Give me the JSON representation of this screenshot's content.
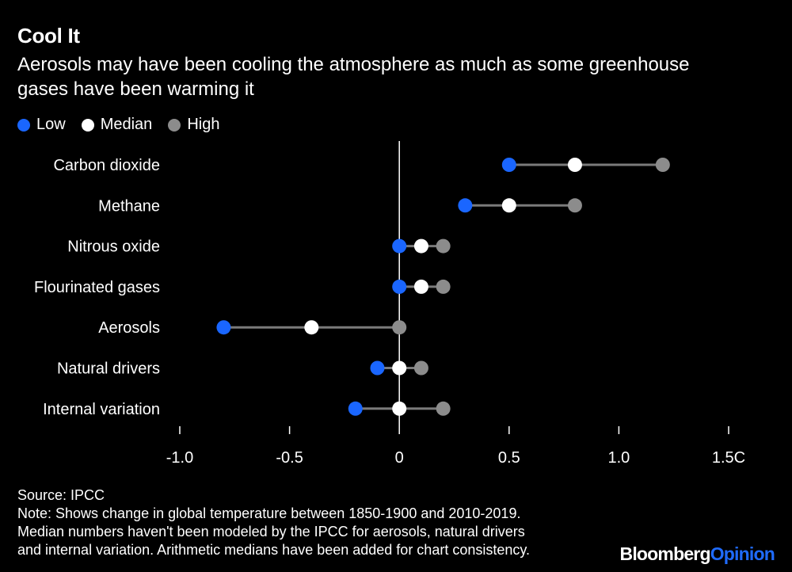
{
  "header": {
    "title": "Cool It",
    "subtitle": "Aerosols may have been cooling the atmosphere as much as some greenhouse gases have been warming it"
  },
  "legend": [
    {
      "label": "Low",
      "color": "#1a66ff"
    },
    {
      "label": "Median",
      "color": "#ffffff"
    },
    {
      "label": "High",
      "color": "#8c8c8c"
    }
  ],
  "colors": {
    "background": "#000000",
    "range_line": "#7a7a7a",
    "zero_line": "#ffffff",
    "text": "#ffffff"
  },
  "chart_data": {
    "type": "scatter",
    "categories": [
      "Carbon dioxide",
      "Methane",
      "Nitrous oxide",
      "Flourinated gases",
      "Aerosols",
      "Natural drivers",
      "Internal variation"
    ],
    "series": [
      {
        "name": "Low",
        "values": [
          0.5,
          0.3,
          0.0,
          0.0,
          -0.8,
          -0.1,
          -0.2
        ]
      },
      {
        "name": "Median",
        "values": [
          0.8,
          0.5,
          0.1,
          0.1,
          -0.4,
          0.0,
          0.0
        ]
      },
      {
        "name": "High",
        "values": [
          1.2,
          0.8,
          0.2,
          0.2,
          0.0,
          0.1,
          0.2
        ]
      }
    ],
    "xlim": [
      -1.0,
      1.5
    ],
    "xticks": [
      -1.0,
      -0.5,
      0,
      0.5,
      1.0,
      1.5
    ],
    "xtick_labels": [
      "-1.0",
      "-0.5",
      "0",
      "0.5",
      "1.0",
      "1.5C"
    ],
    "grid": false,
    "legend_position": "top-left"
  },
  "footer": {
    "source": "Source: IPCC",
    "note_lines": [
      "Note: Shows change in global temperature between 1850-1900 and 2010-2019.",
      "Median numbers haven't been modeled by the IPCC for aerosols, natural drivers",
      "and internal variation. Arithmetic medians have been added for chart consistency."
    ]
  },
  "brand": {
    "name": "Bloomberg",
    "section": "Opinion"
  }
}
